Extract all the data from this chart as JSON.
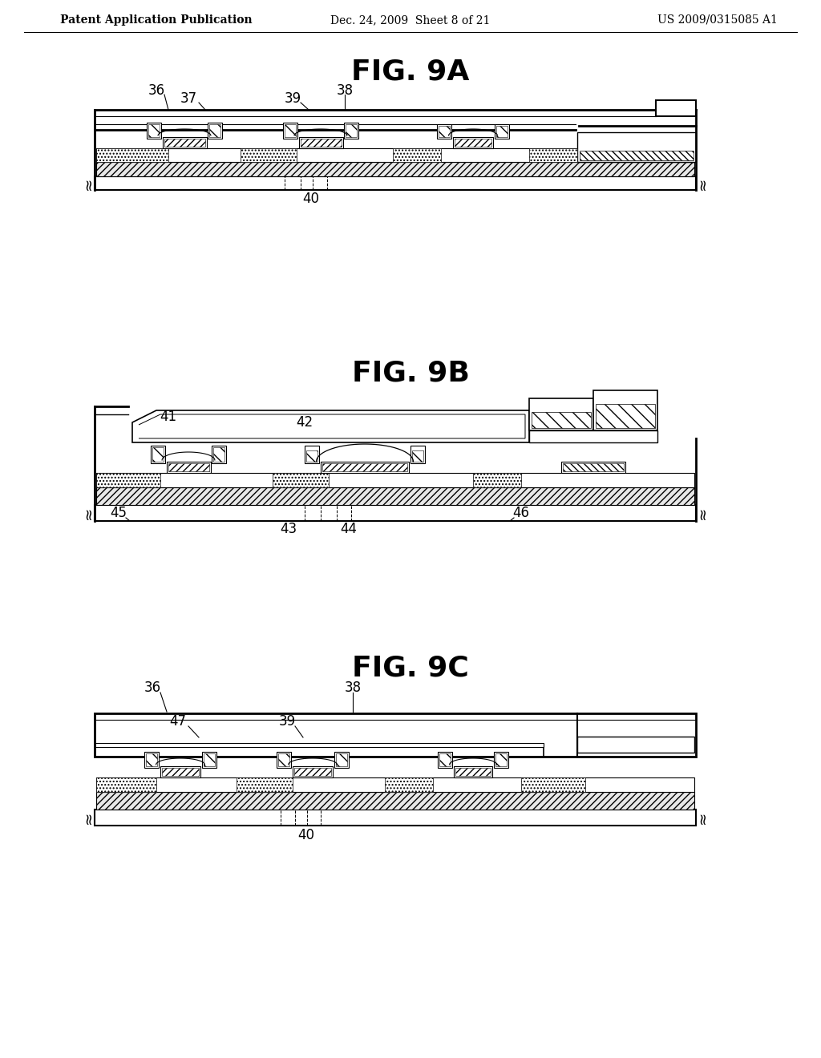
{
  "bg_color": "#ffffff",
  "header_left": "Patent Application Publication",
  "header_center": "Dec. 24, 2009  Sheet 8 of 21",
  "header_right": "US 2009/0315085 A1",
  "header_fontsize": 10,
  "label_fontsize": 12,
  "fig_title_fontsize": 26
}
